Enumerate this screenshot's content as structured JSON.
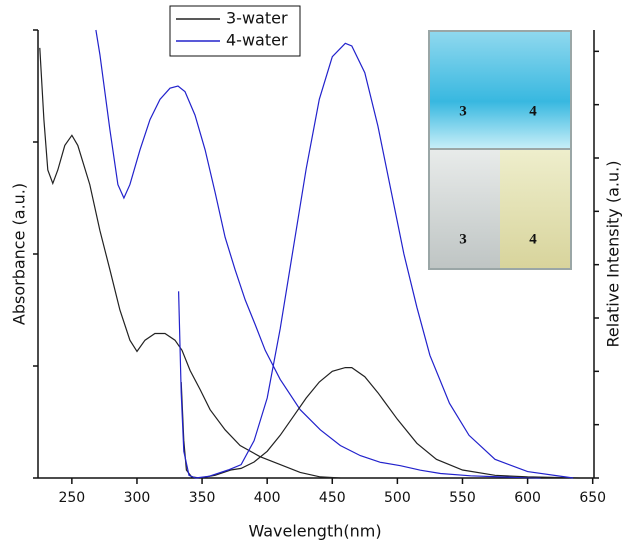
{
  "chart_data": {
    "type": "line",
    "x_label": "Wavelength(nm)",
    "y_label": "Absorbance (a.u.)",
    "y2_label": "Relative Intensity (a.u.)",
    "xlim": [
      224,
      651
    ],
    "xticks": [
      250,
      300,
      350,
      400,
      450,
      500,
      550,
      600,
      650
    ],
    "ylim": [
      0,
      4
    ],
    "yticks": [
      0,
      1,
      2,
      3,
      4
    ],
    "y2lim": [
      0,
      8.4
    ],
    "y2ticks": [
      0,
      1,
      2,
      3,
      4,
      5,
      6,
      7,
      8
    ],
    "legend": "top",
    "inset_labels": [
      "3",
      "4",
      "3",
      "4"
    ],
    "series": [
      {
        "name": "3-water",
        "color": "#222222",
        "x": [
          225.4,
          228.5,
          231.5,
          235.4,
          239.2,
          244.6,
          250,
          254.6,
          263.8,
          271.5,
          279.2,
          286.9,
          294.6,
          300,
          306.2,
          313.8,
          321.5,
          329.2,
          334.6,
          340.8,
          348.5,
          356.2,
          367.7,
          379.2,
          394.6,
          410,
          425.4,
          440.8,
          456.2
        ],
        "values": [
          3.84,
          3.2,
          2.75,
          2.63,
          2.75,
          2.97,
          3.06,
          2.97,
          2.62,
          2.21,
          1.86,
          1.5,
          1.23,
          1.13,
          1.23,
          1.29,
          1.29,
          1.23,
          1.14,
          0.96,
          0.79,
          0.61,
          0.43,
          0.29,
          0.19,
          0.12,
          0.05,
          0.01,
          0
        ]
      },
      {
        "name": "4-water",
        "color": "#2222cc",
        "x": [
          268.5,
          271.5,
          279.2,
          285.4,
          290,
          294.6,
          302.3,
          310,
          317.7,
          325.4,
          331.5,
          336.9,
          344.6,
          352.3,
          360,
          367.7,
          375.4,
          383.1,
          390.8,
          398.5,
          410,
          425.4,
          440.8,
          456.2,
          471.5,
          486.9,
          502.3,
          517.7,
          533.1,
          556.2,
          579.2,
          610
        ],
        "values": [
          4.0,
          3.78,
          3.11,
          2.62,
          2.5,
          2.62,
          2.93,
          3.2,
          3.38,
          3.48,
          3.5,
          3.45,
          3.24,
          2.93,
          2.55,
          2.15,
          1.86,
          1.59,
          1.37,
          1.14,
          0.88,
          0.61,
          0.43,
          0.29,
          0.2,
          0.14,
          0.11,
          0.07,
          0.04,
          0.02,
          0.01,
          0
        ]
      },
      {
        "color": "#222222",
        "axis": "y2",
        "x": [
          334,
          336,
          338,
          342,
          348,
          360,
          372,
          380,
          390,
          400,
          410,
          420,
          430,
          440,
          450,
          460,
          465,
          475,
          485,
          500,
          515,
          530,
          550,
          575,
          600,
          640
        ],
        "values": [
          1.8,
          0.7,
          0.15,
          0.02,
          0,
          0.05,
          0.15,
          0.18,
          0.3,
          0.5,
          0.8,
          1.15,
          1.5,
          1.8,
          2.0,
          2.07,
          2.07,
          1.9,
          1.6,
          1.1,
          0.65,
          0.35,
          0.15,
          0.05,
          0.02,
          0
        ]
      },
      {
        "color": "#2222cc",
        "axis": "y2",
        "x": [
          332,
          334,
          336,
          340,
          345,
          355,
          370,
          380,
          390,
          400,
          410,
          420,
          430,
          440,
          450,
          460,
          465,
          475,
          485,
          495,
          505,
          515,
          525,
          540,
          555,
          575,
          600,
          635
        ],
        "values": [
          3.5,
          1.6,
          0.5,
          0.05,
          0,
          0.03,
          0.15,
          0.25,
          0.7,
          1.5,
          2.8,
          4.3,
          5.8,
          7.1,
          7.9,
          8.15,
          8.1,
          7.6,
          6.6,
          5.4,
          4.2,
          3.2,
          2.3,
          1.4,
          0.8,
          0.35,
          0.12,
          0
        ]
      }
    ]
  }
}
